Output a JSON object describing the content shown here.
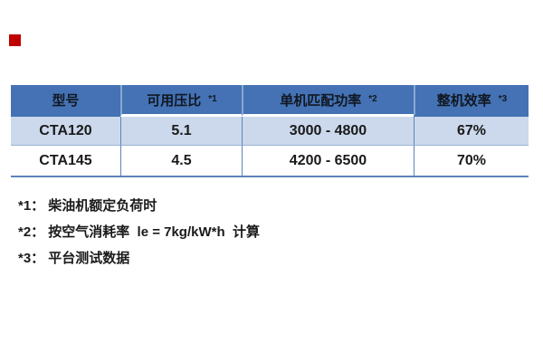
{
  "page": {
    "background": "#ffffff",
    "type": "specification-table-slide"
  },
  "red_marker": {
    "color": "#c00000"
  },
  "table": {
    "columns": [
      {
        "label": "型号",
        "ref": ""
      },
      {
        "label": "可用压比",
        "ref": "*1"
      },
      {
        "label": "单机匹配功率",
        "ref": "*2"
      },
      {
        "label": "整机效率",
        "ref": "*3"
      }
    ],
    "rows": [
      {
        "model": "CTA120",
        "pressure_ratio": "5.1",
        "power_range": "3000 - 4800",
        "efficiency": "67%"
      },
      {
        "model": "CTA145",
        "pressure_ratio": "4.5",
        "power_range": "4200 - 6500",
        "efficiency": "70%"
      }
    ],
    "colors": {
      "header_bg": "#4472b4",
      "header_text": "#111722",
      "alt_row_bg": "#ccd9ec",
      "plain_row_bg": "#ffffff",
      "header_divider": "#8aa7d2",
      "body_divider": "#5d84ba",
      "row_separator": "#9ab4d6",
      "bottom_border": "#5d84ba",
      "body_text": "#1a1a1a"
    }
  },
  "footnotes": [
    {
      "marker": "*1：",
      "text": "柴油机额定负荷时"
    },
    {
      "marker": "*2：",
      "text": "按空气消耗率  le = 7kg/kW*h  计算"
    },
    {
      "marker": "*3：",
      "text": "平台测试数据"
    }
  ]
}
